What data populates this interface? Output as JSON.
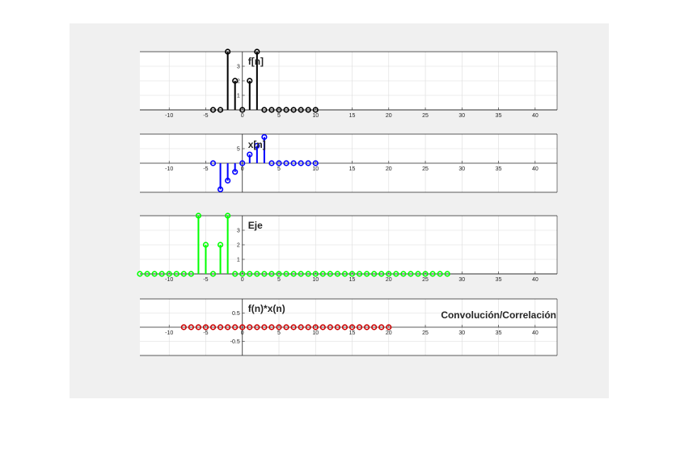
{
  "figure": {
    "background": "#f0f0f0",
    "axes_background": "#ffffff"
  },
  "chart_data": [
    {
      "type": "stem",
      "title": "f[n]",
      "color": "#000000",
      "xlim": [
        -14,
        43
      ],
      "ylim": [
        0,
        4
      ],
      "xticks": [
        -10,
        -5,
        0,
        5,
        10,
        15,
        20,
        25,
        30,
        35,
        40
      ],
      "yticks": [
        1,
        2,
        3
      ],
      "ytick_labels": [
        "1",
        "2",
        "3"
      ],
      "grid": true,
      "x": [
        -4,
        -3,
        -2,
        -1,
        0,
        1,
        2,
        3,
        4,
        5,
        6,
        7,
        8,
        9,
        10
      ],
      "values": [
        0,
        0,
        4,
        2,
        0,
        2,
        4,
        0,
        0,
        0,
        0,
        0,
        0,
        0,
        0
      ]
    },
    {
      "type": "stem",
      "title": "x[n]",
      "color": "#0000ff",
      "xlim": [
        -14,
        43
      ],
      "ylim": [
        -10,
        10
      ],
      "xticks": [
        -10,
        -5,
        0,
        5,
        10,
        15,
        20,
        25,
        30,
        35,
        40
      ],
      "yticks": [
        5
      ],
      "ytick_labels": [
        "5"
      ],
      "grid": true,
      "x": [
        -4,
        -3,
        -2,
        -1,
        0,
        1,
        2,
        3,
        4,
        5,
        6,
        7,
        8,
        9,
        10
      ],
      "values": [
        0,
        -9,
        -6,
        -3,
        0,
        3,
        6,
        9,
        0,
        0,
        0,
        0,
        0,
        0,
        0
      ]
    },
    {
      "type": "stem",
      "title": "Eje",
      "color": "#00ff00",
      "xlim": [
        -14,
        43
      ],
      "ylim": [
        0,
        4
      ],
      "xticks": [
        -10,
        -5,
        0,
        5,
        10,
        15,
        20,
        25,
        30,
        35,
        40
      ],
      "yticks": [
        1,
        2,
        3
      ],
      "ytick_labels": [
        "1",
        "2",
        "3"
      ],
      "grid": true,
      "x": [
        -14,
        -13,
        -12,
        -11,
        -10,
        -9,
        -8,
        -7,
        -6,
        -5,
        -4,
        -3,
        -2,
        -1,
        0,
        1,
        2,
        3,
        4,
        5,
        6,
        7,
        8,
        9,
        10,
        11,
        12,
        13,
        14,
        15,
        16,
        17,
        18,
        19,
        20,
        21,
        22,
        23,
        24,
        25,
        26,
        27,
        28
      ],
      "values": [
        0,
        0,
        0,
        0,
        0,
        0,
        0,
        0,
        4,
        2,
        0,
        2,
        4,
        0,
        0,
        0,
        0,
        0,
        0,
        0,
        0,
        0,
        0,
        0,
        0,
        0,
        0,
        0,
        0,
        0,
        0,
        0,
        0,
        0,
        0,
        0,
        0,
        0,
        0,
        0,
        0,
        0,
        0
      ]
    },
    {
      "type": "stem",
      "title": "f(n)*x(n)",
      "annotation": "Convolución/Correlación",
      "color": "#cc0000",
      "xlim": [
        -14,
        43
      ],
      "ylim": [
        -1,
        1
      ],
      "xticks": [
        -10,
        -5,
        0,
        5,
        10,
        15,
        20,
        25,
        30,
        35,
        40
      ],
      "yticks": [
        0.5,
        -0.5
      ],
      "ytick_labels": [
        "0.5",
        "-0.5"
      ],
      "grid": true,
      "x": [
        -8,
        -7,
        -6,
        -5,
        -4,
        -3,
        -2,
        -1,
        0,
        1,
        2,
        3,
        4,
        5,
        6,
        7,
        8,
        9,
        10,
        11,
        12,
        13,
        14,
        15,
        16,
        17,
        18,
        19,
        20
      ],
      "values": [
        0,
        0,
        0,
        0,
        0,
        0,
        0,
        0,
        0,
        0,
        0,
        0,
        0,
        0,
        0,
        0,
        0,
        0,
        0,
        0,
        0,
        0,
        0,
        0,
        0,
        0,
        0,
        0,
        0
      ]
    }
  ]
}
